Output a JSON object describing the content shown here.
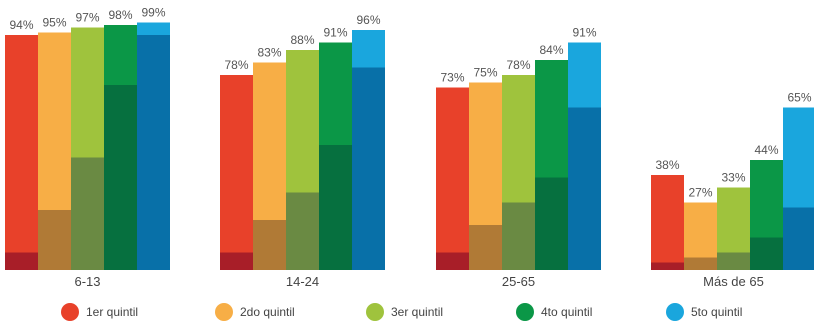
{
  "chart_data": {
    "type": "bar",
    "ylim": [
      0,
      100
    ],
    "legend_position": "bottom",
    "grid": false,
    "categories": [
      "6-13",
      "14-24",
      "25-65",
      "Más de 65"
    ],
    "series": [
      {
        "name": "1er quintil",
        "color": "#e8412a",
        "inner_color": "#a81e28",
        "values": [
          94,
          78,
          73,
          38
        ],
        "labels": [
          "94%",
          "78%",
          "73%",
          "38%"
        ],
        "inner_values": [
          7,
          7,
          7,
          3
        ]
      },
      {
        "name": "2do quintil",
        "color": "#f7ae46",
        "inner_color": "#b07a36",
        "values": [
          95,
          83,
          75,
          27
        ],
        "labels": [
          "95%",
          "83%",
          "75%",
          "27%"
        ],
        "inner_values": [
          24,
          20,
          18,
          5
        ]
      },
      {
        "name": "3er quintil",
        "color": "#9fc33d",
        "inner_color": "#6a8a43",
        "values": [
          97,
          88,
          78,
          33
        ],
        "labels": [
          "97%",
          "88%",
          "78%",
          "33%"
        ],
        "inner_values": [
          45,
          31,
          27,
          7
        ]
      },
      {
        "name": "4to quintil",
        "color": "#0b9747",
        "inner_color": "#06703f",
        "values": [
          98,
          91,
          84,
          44
        ],
        "labels": [
          "98%",
          "91%",
          "84%",
          "44%"
        ],
        "inner_values": [
          74,
          50,
          37,
          13
        ]
      },
      {
        "name": "5to quintil",
        "color": "#1aa6dd",
        "inner_color": "#0870a8",
        "values": [
          99,
          96,
          91,
          65
        ],
        "labels": [
          "99%",
          "96%",
          "91%",
          "65%"
        ],
        "inner_values": [
          94,
          81,
          65,
          25
        ]
      }
    ]
  }
}
